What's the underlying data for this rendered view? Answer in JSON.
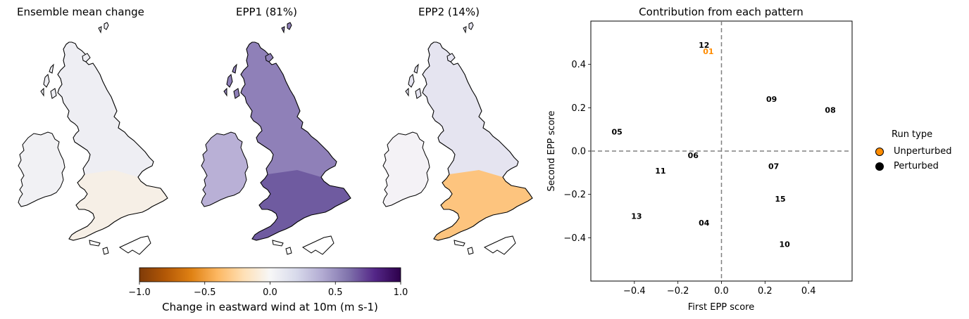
{
  "maps": [
    {
      "title": "Ensemble mean change",
      "fill": "#eeeef3",
      "south_fill": "#f6efe6",
      "ireland_fill": "#f1f1f4"
    },
    {
      "title": "EPP1 (81%)",
      "fill": "#8f80b8",
      "south_fill": "#6f5ba0",
      "ireland_fill": "#b9b0d6"
    },
    {
      "title": "EPP2 (14%)",
      "fill": "#e5e4f0",
      "south_fill": "#fdc47e",
      "ireland_fill": "#f4f2f6"
    }
  ],
  "colorbar": {
    "label": "Change in eastward wind at 10m (m s-1)",
    "min": -1.0,
    "max": 1.0,
    "ticks": [
      "−1.0",
      "−0.5",
      "0.0",
      "0.5",
      "1.0"
    ],
    "tick_values": [
      -1.0,
      -0.5,
      0.0,
      0.5,
      1.0
    ],
    "colors": [
      "#7f3b08",
      "#b35806",
      "#e08214",
      "#fdb863",
      "#fee0b6",
      "#f7f7f7",
      "#d8daeb",
      "#b2abd2",
      "#8073ac",
      "#542788",
      "#2d004b"
    ]
  },
  "chart_data": {
    "type": "scatter",
    "title": "Contribution from each pattern",
    "xlabel": "First EPP score",
    "ylabel": "Second EPP score",
    "xlim": [
      -0.6,
      0.6
    ],
    "ylim": [
      -0.6,
      0.6
    ],
    "xticks": [
      -0.4,
      -0.2,
      0.0,
      0.2,
      0.4
    ],
    "xtick_labels": [
      "−0.4",
      "−0.2",
      "0.0",
      "0.2",
      "0.4"
    ],
    "yticks": [
      -0.4,
      -0.2,
      0.0,
      0.2,
      0.4
    ],
    "ytick_labels": [
      "−0.4",
      "−0.2",
      "0.0",
      "0.2",
      "0.4"
    ],
    "reference_lines": {
      "x": 0.0,
      "y": 0.0,
      "style": "dashed",
      "color": "#808080"
    },
    "points": [
      {
        "label": "01",
        "x": -0.06,
        "y": 0.46,
        "run_type": "Unperturbed"
      },
      {
        "label": "12",
        "x": -0.08,
        "y": 0.49,
        "run_type": "Perturbed"
      },
      {
        "label": "09",
        "x": 0.23,
        "y": 0.24,
        "run_type": "Perturbed"
      },
      {
        "label": "08",
        "x": 0.5,
        "y": 0.19,
        "run_type": "Perturbed"
      },
      {
        "label": "05",
        "x": -0.48,
        "y": 0.09,
        "run_type": "Perturbed"
      },
      {
        "label": "06",
        "x": -0.13,
        "y": -0.02,
        "run_type": "Perturbed"
      },
      {
        "label": "11",
        "x": -0.28,
        "y": -0.09,
        "run_type": "Perturbed"
      },
      {
        "label": "07",
        "x": 0.24,
        "y": -0.07,
        "run_type": "Perturbed"
      },
      {
        "label": "15",
        "x": 0.27,
        "y": -0.22,
        "run_type": "Perturbed"
      },
      {
        "label": "13",
        "x": -0.39,
        "y": -0.3,
        "run_type": "Perturbed"
      },
      {
        "label": "04",
        "x": -0.08,
        "y": -0.33,
        "run_type": "Perturbed"
      },
      {
        "label": "10",
        "x": 0.29,
        "y": -0.43,
        "run_type": "Perturbed"
      }
    ],
    "legend": {
      "title": "Run type",
      "placement": "right",
      "entries": [
        {
          "label": "Unperturbed",
          "color": "#ff8c00"
        },
        {
          "label": "Perturbed",
          "color": "#000000"
        }
      ]
    }
  }
}
